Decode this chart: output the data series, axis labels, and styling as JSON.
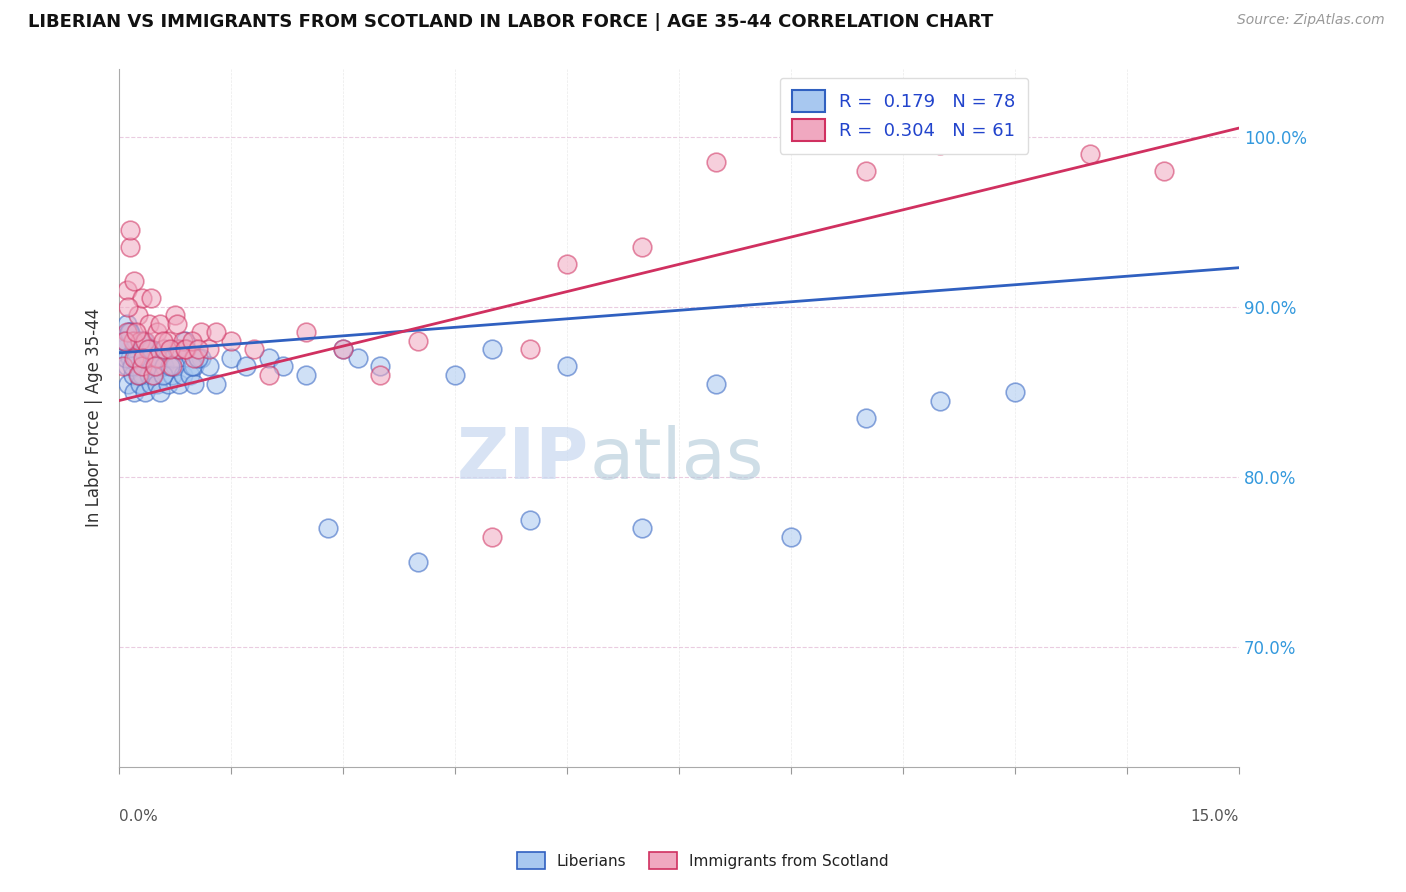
{
  "title": "LIBERIAN VS IMMIGRANTS FROM SCOTLAND IN LABOR FORCE | AGE 35-44 CORRELATION CHART",
  "source": "Source: ZipAtlas.com",
  "ylabel": "In Labor Force | Age 35-44",
  "xmin": 0.0,
  "xmax": 15.0,
  "ymin": 63.0,
  "ymax": 104.0,
  "ytick_vals": [
    70.0,
    80.0,
    90.0,
    100.0
  ],
  "right_ytick_labels": [
    "70.0%",
    "80.0%",
    "90.0%",
    "100.0%"
  ],
  "color_blue": "#a8c8f0",
  "color_pink": "#f0a8c0",
  "line_blue": "#3060c0",
  "line_pink": "#d03060",
  "watermark_color": "#c8d8f0",
  "lib_x": [
    0.05,
    0.08,
    0.1,
    0.1,
    0.12,
    0.15,
    0.15,
    0.18,
    0.2,
    0.2,
    0.22,
    0.25,
    0.25,
    0.28,
    0.3,
    0.3,
    0.32,
    0.35,
    0.35,
    0.38,
    0.4,
    0.4,
    0.42,
    0.45,
    0.48,
    0.5,
    0.5,
    0.52,
    0.55,
    0.6,
    0.6,
    0.65,
    0.7,
    0.72,
    0.75,
    0.8,
    0.85,
    0.9,
    0.95,
    1.0,
    1.0,
    1.1,
    1.2,
    1.3,
    1.5,
    1.7,
    2.0,
    2.2,
    2.5,
    2.8,
    3.0,
    3.2,
    3.5,
    4.0,
    4.5,
    5.0,
    5.5,
    6.0,
    7.0,
    8.0,
    9.0,
    10.0,
    11.0,
    12.0,
    0.06,
    0.09,
    0.13,
    0.17,
    0.23,
    0.27,
    0.33,
    0.42,
    0.58,
    0.68,
    0.78,
    0.88,
    0.98,
    1.05
  ],
  "lib_y": [
    87.5,
    88.0,
    86.5,
    89.0,
    85.5,
    87.0,
    88.5,
    86.0,
    85.0,
    87.5,
    88.0,
    86.5,
    87.0,
    85.5,
    86.0,
    87.5,
    88.0,
    86.5,
    85.0,
    87.0,
    86.0,
    87.5,
    85.5,
    86.0,
    87.0,
    85.5,
    86.5,
    87.0,
    85.0,
    86.5,
    87.5,
    85.5,
    86.0,
    87.0,
    86.5,
    85.5,
    86.0,
    87.5,
    86.0,
    85.5,
    86.5,
    87.0,
    86.5,
    85.5,
    87.0,
    86.5,
    87.0,
    86.5,
    86.0,
    77.0,
    87.5,
    87.0,
    86.5,
    75.0,
    86.0,
    87.5,
    77.5,
    86.5,
    77.0,
    85.5,
    76.5,
    83.5,
    84.5,
    85.0,
    88.0,
    87.0,
    88.5,
    86.5,
    87.0,
    86.0,
    88.0,
    87.5,
    86.0,
    86.5,
    87.5,
    88.0,
    86.5,
    87.0
  ],
  "scot_x": [
    0.05,
    0.1,
    0.1,
    0.15,
    0.15,
    0.18,
    0.2,
    0.2,
    0.25,
    0.25,
    0.28,
    0.3,
    0.3,
    0.35,
    0.38,
    0.4,
    0.42,
    0.45,
    0.5,
    0.5,
    0.55,
    0.6,
    0.65,
    0.7,
    0.75,
    0.8,
    0.85,
    0.9,
    1.0,
    1.1,
    1.2,
    1.5,
    1.8,
    2.0,
    2.5,
    3.0,
    3.5,
    4.0,
    5.0,
    5.5,
    6.0,
    7.0,
    8.0,
    9.0,
    10.0,
    11.0,
    12.0,
    13.0,
    14.0,
    0.08,
    0.12,
    0.22,
    0.32,
    0.48,
    0.58,
    0.68,
    0.78,
    0.88,
    0.98,
    1.05,
    1.3
  ],
  "scot_y": [
    86.5,
    88.5,
    91.0,
    93.5,
    94.5,
    88.0,
    91.5,
    87.0,
    89.5,
    86.0,
    88.0,
    90.5,
    86.5,
    88.0,
    87.5,
    89.0,
    90.5,
    86.0,
    88.5,
    87.0,
    89.0,
    87.5,
    88.0,
    86.5,
    89.5,
    87.5,
    88.0,
    87.5,
    87.0,
    88.5,
    87.5,
    88.0,
    87.5,
    86.0,
    88.5,
    87.5,
    86.0,
    88.0,
    76.5,
    87.5,
    92.5,
    93.5,
    98.5,
    100.5,
    98.0,
    99.5,
    100.5,
    99.0,
    98.0,
    88.0,
    90.0,
    88.5,
    87.0,
    86.5,
    88.0,
    87.5,
    89.0,
    87.5,
    88.0,
    87.5,
    88.5
  ]
}
